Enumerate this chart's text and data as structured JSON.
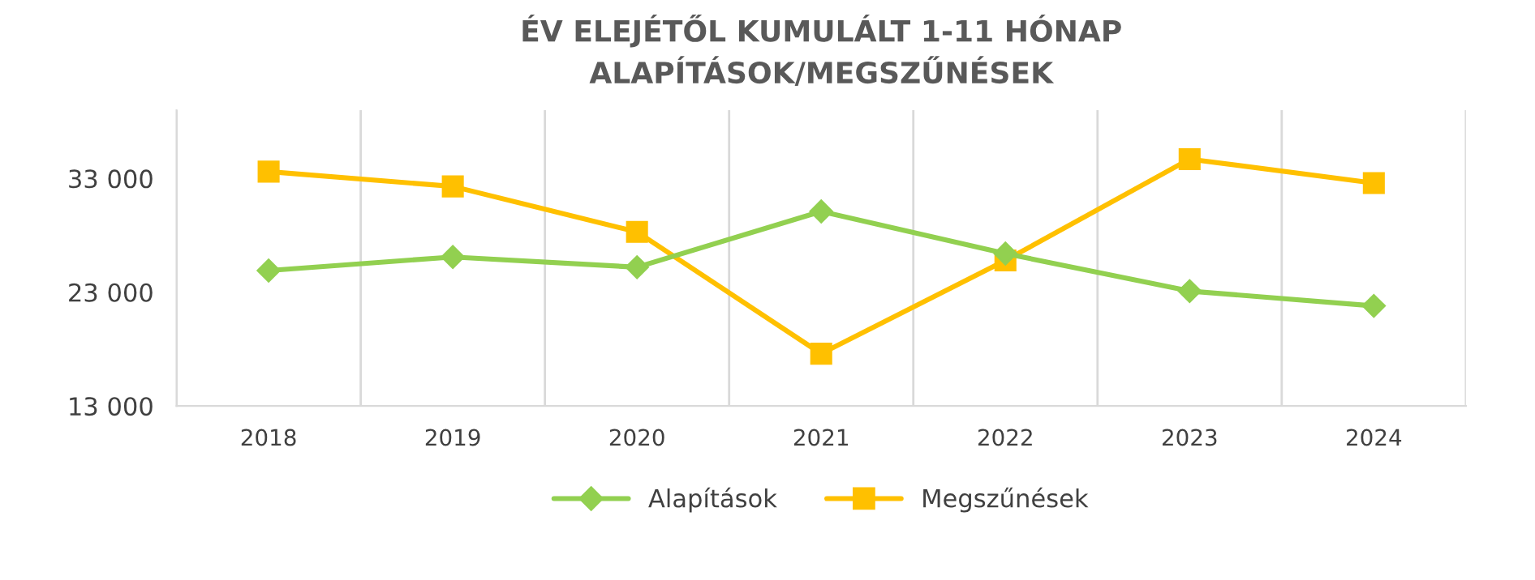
{
  "chart_data": {
    "type": "line",
    "title": "ÉV ELEJÉTŐL KUMULÁLT 1-11 HÓNAP\nALAPÍTÁSOK/MEGSZŰNÉSEK",
    "categories": [
      "2018",
      "2019",
      "2020",
      "2021",
      "2022",
      "2023",
      "2024"
    ],
    "series": [
      {
        "name": "Alapítások",
        "color": "#92d050",
        "marker": "diamond",
        "values": [
          24900,
          26100,
          25200,
          30100,
          26400,
          23100,
          21800
        ]
      },
      {
        "name": "Megszűnések",
        "color": "#ffc000",
        "marker": "square",
        "values": [
          33600,
          32300,
          28300,
          17600,
          25800,
          34700,
          32600
        ]
      }
    ],
    "ylim": [
      13000,
      39000
    ],
    "yticks": [
      {
        "value": 13000,
        "label": "13 000"
      },
      {
        "value": 23000,
        "label": "23 000"
      },
      {
        "value": 33000,
        "label": "33 000"
      }
    ],
    "grid": "x",
    "legend": "bottom",
    "line_style": "solid"
  }
}
